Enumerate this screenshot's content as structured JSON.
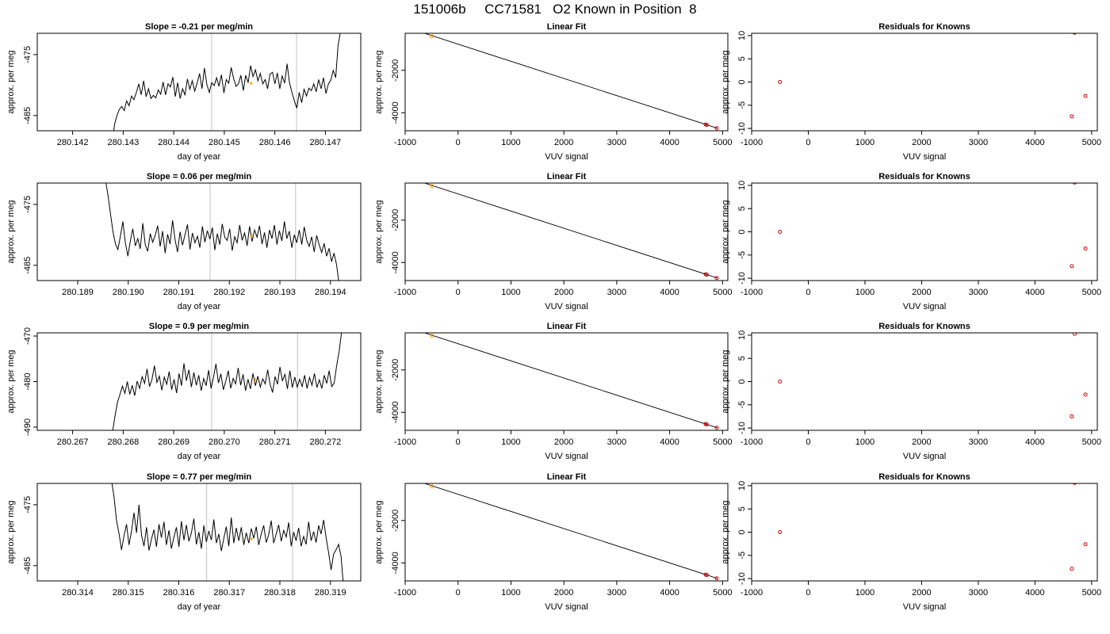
{
  "page_title": "151006b     CC71581   O2 Known in Position  8",
  "chart_data": [
    {
      "type": "line",
      "title": "Slope =  -0.21  per meg/min",
      "xlabel": "day of year",
      "ylabel": "approx. per meg",
      "xlim": [
        280.1413,
        280.1477
      ],
      "ylim": [
        -487.5,
        -471.5
      ],
      "xticks": [
        "280.142",
        "280.143",
        "280.144",
        "280.145",
        "280.146",
        "280.147"
      ],
      "yticks": [
        "-475",
        "-485"
      ],
      "ytick_values": [
        -475,
        -485
      ],
      "vlines": [
        280.14475,
        280.14643
      ],
      "vline_color": "#cccccc",
      "x_start": 280.14278,
      "x_end": 280.1473,
      "y": [
        -490,
        -486.5,
        -485,
        -484,
        -483.5,
        -484.2,
        -482.6,
        -483.4,
        -481.8,
        -482.4,
        -481.2,
        -479.8,
        -481.6,
        -479.3,
        -481.9,
        -480.6,
        -482.2,
        -481.7,
        -482.1,
        -480.8,
        -481.5,
        -479.5,
        -481.6,
        -479.8,
        -480.3,
        -478.7,
        -481.9,
        -479.6,
        -482.2,
        -480.6,
        -481.6,
        -479.0,
        -480.7,
        -479.3,
        -481.0,
        -479.7,
        -478.1,
        -480.6,
        -477.2,
        -479.9,
        -481.2,
        -479.6,
        -480.1,
        -478.8,
        -480.2,
        -478.3,
        -481.3,
        -479.1,
        -479.7,
        -477.1,
        -478.9,
        -480.2,
        -479.8,
        -478.4,
        -480.9,
        -478.4,
        -479.6,
        -476.8,
        -478.6,
        -477.5,
        -479.3,
        -478.1,
        -479.8,
        -479.1,
        -480.6,
        -478.2,
        -477.9,
        -479.8,
        -478.0,
        -480.6,
        -478.5,
        -479.7,
        -476.5,
        -479.6,
        -481.2,
        -482.6,
        -483.8,
        -481.2,
        -482.9,
        -480.7,
        -481.8,
        -480.5,
        -480.9,
        -479.8,
        -481.1,
        -479.1,
        -480.6,
        -478.8,
        -481.4,
        -479.8,
        -479.2,
        -477.6,
        -478.8,
        -473.5,
        -471.2
      ],
      "marker": {
        "x": 280.14553,
        "y": -479.7,
        "color": "#ff9900"
      }
    },
    {
      "type": "scatter",
      "title": "Linear Fit",
      "xlabel": "VUV signal",
      "ylabel": "approx. per meg",
      "xlim": [
        -1000,
        5100
      ],
      "ylim": [
        -4850,
        -250
      ],
      "xticks": [
        "-1000",
        "0",
        "1000",
        "2000",
        "3000",
        "4000",
        "5000"
      ],
      "xtick_values": [
        -1000,
        0,
        1000,
        2000,
        3000,
        4000,
        5000
      ],
      "yticks": [
        "-2000",
        "-4000"
      ],
      "ytick_values": [
        -2000,
        -4000
      ],
      "fit_line": {
        "x": [
          -780,
          4900
        ],
        "y": [
          -130,
          -4730
        ]
      },
      "points": [
        {
          "x": -495,
          "y": -393,
          "color": "#ff9900"
        },
        {
          "x": 4680,
          "y": -4555,
          "color": "#cc0000"
        },
        {
          "x": 4700,
          "y": -4575,
          "color": "#cc0000"
        },
        {
          "x": 4890,
          "y": -4730,
          "color": "#cc0000"
        }
      ]
    },
    {
      "type": "scatter",
      "title": "Residuals for Knowns",
      "xlabel": "VUV signal",
      "ylabel": "approx. per meg",
      "xlim": [
        -1000,
        5100
      ],
      "ylim": [
        -10.5,
        10.5
      ],
      "xticks": [
        "-1000",
        "0",
        "1000",
        "2000",
        "3000",
        "4000",
        "5000"
      ],
      "xtick_values": [
        -1000,
        0,
        1000,
        2000,
        3000,
        4000,
        5000
      ],
      "yticks": [
        "10",
        "5",
        "0",
        "-5",
        "-10"
      ],
      "ytick_values": [
        10,
        5,
        0,
        -5,
        -10
      ],
      "points": [
        {
          "x": -500,
          "y": 0.0,
          "color": "#cc0000"
        },
        {
          "x": 4700,
          "y": 10.6,
          "color": "#cc0000"
        },
        {
          "x": 4650,
          "y": -7.4,
          "color": "#cc0000"
        },
        {
          "x": 4890,
          "y": -3.0,
          "color": "#cc0000"
        }
      ]
    },
    {
      "type": "line",
      "title": "Slope =  0.06  per meg/min",
      "xlabel": "day of year",
      "ylabel": "approx. per meg",
      "xlim": [
        280.1882,
        280.1946
      ],
      "ylim": [
        -487.5,
        -471.5
      ],
      "xticks": [
        "280.189",
        "280.190",
        "280.191",
        "280.192",
        "280.193",
        "280.194"
      ],
      "yticks": [
        "-475",
        "-485"
      ],
      "ytick_values": [
        -475,
        -485
      ],
      "vlines": [
        280.19162,
        280.19331
      ],
      "vline_color": "#cccccc",
      "x_start": 280.18955,
      "x_end": 280.19417,
      "y": [
        -471.0,
        -473.5,
        -476.5,
        -479.5,
        -481.5,
        -482.4,
        -480.2,
        -477.8,
        -481.3,
        -483.5,
        -481.0,
        -479.0,
        -481.8,
        -480.6,
        -482.3,
        -478.1,
        -481.6,
        -482.7,
        -479.8,
        -481.2,
        -480.1,
        -478.5,
        -481.9,
        -479.4,
        -483.0,
        -479.9,
        -481.5,
        -477.6,
        -480.8,
        -482.8,
        -479.5,
        -481.7,
        -480.0,
        -478.3,
        -482.4,
        -479.7,
        -481.3,
        -480.2,
        -482.1,
        -478.6,
        -481.2,
        -479.3,
        -480.7,
        -478.8,
        -482.5,
        -479.8,
        -481.6,
        -478.2,
        -480.4,
        -480.9,
        -479.0,
        -482.6,
        -480.3,
        -481.3,
        -478.4,
        -480.9,
        -479.7,
        -481.8,
        -478.6,
        -481.1,
        -479.2,
        -480.4,
        -478.5,
        -481.5,
        -479.6,
        -482.1,
        -479.2,
        -480.6,
        -478.4,
        -481.6,
        -479.3,
        -481.0,
        -477.8,
        -480.6,
        -479.4,
        -482.1,
        -480.0,
        -481.3,
        -479.2,
        -481.6,
        -478.7,
        -480.9,
        -481.9,
        -480.3,
        -482.8,
        -480.1,
        -481.6,
        -482.9,
        -481.4,
        -483.5,
        -482.2,
        -484.4,
        -483.0,
        -484.9,
        -488.0
      ],
      "marker": {
        "x": 280.19244,
        "y": -480.2,
        "color": "#ff9900"
      }
    },
    {
      "type": "scatter",
      "title": "Linear Fit",
      "xlabel": "VUV signal",
      "ylabel": "approx. per meg",
      "xlim": [
        -1000,
        5100
      ],
      "ylim": [
        -4850,
        -250
      ],
      "xticks": [
        "-1000",
        "0",
        "1000",
        "2000",
        "3000",
        "4000",
        "5000"
      ],
      "xtick_values": [
        -1000,
        0,
        1000,
        2000,
        3000,
        4000,
        5000
      ],
      "yticks": [
        "-2000",
        "-4000"
      ],
      "ytick_values": [
        -2000,
        -4000
      ],
      "fit_line": {
        "x": [
          -780,
          4900
        ],
        "y": [
          -130,
          -4730
        ]
      },
      "points": [
        {
          "x": -495,
          "y": -393,
          "color": "#ff9900"
        },
        {
          "x": 4680,
          "y": -4555,
          "color": "#cc0000"
        },
        {
          "x": 4700,
          "y": -4575,
          "color": "#cc0000"
        },
        {
          "x": 4890,
          "y": -4730,
          "color": "#cc0000"
        }
      ]
    },
    {
      "type": "scatter",
      "title": "Residuals for Knowns",
      "xlabel": "VUV signal",
      "ylabel": "approx. per meg",
      "xlim": [
        -1000,
        5100
      ],
      "ylim": [
        -10.5,
        10.5
      ],
      "xticks": [
        "-1000",
        "0",
        "1000",
        "2000",
        "3000",
        "4000",
        "5000"
      ],
      "xtick_values": [
        -1000,
        0,
        1000,
        2000,
        3000,
        4000,
        5000
      ],
      "yticks": [
        "10",
        "5",
        "0",
        "-5",
        "-10"
      ],
      "ytick_values": [
        10,
        5,
        0,
        -5,
        -10
      ],
      "points": [
        {
          "x": -500,
          "y": 0.0,
          "color": "#cc0000"
        },
        {
          "x": 4700,
          "y": 10.6,
          "color": "#cc0000"
        },
        {
          "x": 4650,
          "y": -7.4,
          "color": "#cc0000"
        },
        {
          "x": 4890,
          "y": -3.6,
          "color": "#cc0000"
        }
      ]
    },
    {
      "type": "line",
      "title": "Slope =  0.9  per meg/min",
      "xlabel": "day of year",
      "ylabel": "approx. per meg",
      "xlim": [
        280.2663,
        280.2727
      ],
      "ylim": [
        -490.7,
        -469.3
      ],
      "xticks": [
        "280.267",
        "280.268",
        "280.269",
        "280.270",
        "280.271",
        "280.272"
      ],
      "yticks": [
        "-470",
        "-480",
        "-490"
      ],
      "ytick_values": [
        -470,
        -480,
        -490
      ],
      "vlines": [
        280.26975,
        280.27145
      ],
      "vline_color": "#cccccc",
      "x_start": 280.26779,
      "x_end": 280.27232,
      "y": [
        -491,
        -487.5,
        -484.5,
        -482.8,
        -481.0,
        -482.6,
        -480.0,
        -482.8,
        -480.8,
        -483.1,
        -479.9,
        -481.5,
        -478.9,
        -480.4,
        -477.2,
        -481.1,
        -479.5,
        -476.5,
        -480.2,
        -478.8,
        -481.9,
        -479.0,
        -480.6,
        -477.8,
        -481.8,
        -479.5,
        -482.5,
        -478.2,
        -480.9,
        -476.0,
        -479.8,
        -477.4,
        -481.2,
        -478.0,
        -480.8,
        -478.6,
        -482.0,
        -479.3,
        -480.9,
        -477.5,
        -481.5,
        -479.0,
        -476.1,
        -480.3,
        -478.3,
        -481.8,
        -479.9,
        -477.6,
        -481.5,
        -479.3,
        -480.5,
        -477.0,
        -480.8,
        -478.4,
        -482.0,
        -479.5,
        -481.6,
        -478.2,
        -480.9,
        -478.8,
        -481.2,
        -479.4,
        -480.5,
        -477.4,
        -480.6,
        -482.4,
        -478.9,
        -480.6,
        -476.8,
        -479.8,
        -478.4,
        -481.6,
        -477.6,
        -481.3,
        -479.0,
        -481.2,
        -479.5,
        -481.1,
        -478.6,
        -481.5,
        -479.1,
        -480.8,
        -478.2,
        -481.3,
        -479.6,
        -481.5,
        -478.6,
        -480.4,
        -477.6,
        -481.1,
        -480.3,
        -476.5,
        -473.4,
        -469.2
      ],
      "marker": {
        "x": 280.27061,
        "y": -479.6,
        "color": "#ff9900"
      }
    },
    {
      "type": "scatter",
      "title": "Linear Fit",
      "xlabel": "VUV signal",
      "ylabel": "approx. per meg",
      "xlim": [
        -1000,
        5100
      ],
      "ylim": [
        -4850,
        -250
      ],
      "xticks": [
        "-1000",
        "0",
        "1000",
        "2000",
        "3000",
        "4000",
        "5000"
      ],
      "xtick_values": [
        -1000,
        0,
        1000,
        2000,
        3000,
        4000,
        5000
      ],
      "yticks": [
        "-2000",
        "-4000"
      ],
      "ytick_values": [
        -2000,
        -4000
      ],
      "fit_line": {
        "x": [
          -780,
          4900
        ],
        "y": [
          -130,
          -4730
        ]
      },
      "points": [
        {
          "x": -495,
          "y": -393,
          "color": "#ff9900"
        },
        {
          "x": 4680,
          "y": -4555,
          "color": "#cc0000"
        },
        {
          "x": 4700,
          "y": -4575,
          "color": "#cc0000"
        },
        {
          "x": 4890,
          "y": -4730,
          "color": "#cc0000"
        }
      ]
    },
    {
      "type": "scatter",
      "title": "Residuals for Knowns",
      "xlabel": "VUV signal",
      "ylabel": "approx. per meg",
      "xlim": [
        -1000,
        5100
      ],
      "ylim": [
        -10.5,
        10.5
      ],
      "xticks": [
        "-1000",
        "0",
        "1000",
        "2000",
        "3000",
        "4000",
        "5000"
      ],
      "xtick_values": [
        -1000,
        0,
        1000,
        2000,
        3000,
        4000,
        5000
      ],
      "yticks": [
        "10",
        "5",
        "0",
        "-5",
        "-10"
      ],
      "ytick_values": [
        10,
        5,
        0,
        -5,
        -10
      ],
      "points": [
        {
          "x": -500,
          "y": 0.0,
          "color": "#cc0000"
        },
        {
          "x": 4700,
          "y": 10.3,
          "color": "#cc0000"
        },
        {
          "x": 4650,
          "y": -7.5,
          "color": "#cc0000"
        },
        {
          "x": 4890,
          "y": -2.8,
          "color": "#cc0000"
        }
      ]
    },
    {
      "type": "line",
      "title": "Slope =  0.77  per meg/min",
      "xlabel": "day of year",
      "ylabel": "approx. per meg",
      "xlim": [
        280.3132,
        280.3196
      ],
      "ylim": [
        -487.5,
        -471.5
      ],
      "xticks": [
        "280.314",
        "280.315",
        "280.316",
        "280.317",
        "280.318",
        "280.319"
      ],
      "yticks": [
        "-475",
        "-485"
      ],
      "ytick_values": [
        -475,
        -485
      ],
      "vlines": [
        280.31655,
        280.31825
      ],
      "vline_color": "#cccccc",
      "x_start": 280.31467,
      "x_end": 280.31926,
      "y": [
        -471.0,
        -473.8,
        -477.6,
        -479.8,
        -482.4,
        -480.1,
        -478.2,
        -481.6,
        -479.3,
        -476.3,
        -479.6,
        -475.0,
        -480.0,
        -481.8,
        -478.7,
        -482.5,
        -480.6,
        -479.1,
        -481.9,
        -478.2,
        -480.4,
        -477.8,
        -481.6,
        -479.2,
        -482.2,
        -480.3,
        -478.7,
        -481.9,
        -477.7,
        -480.8,
        -478.3,
        -481.0,
        -479.6,
        -477.3,
        -481.5,
        -479.5,
        -482.2,
        -478.4,
        -481.1,
        -479.3,
        -480.8,
        -477.4,
        -481.3,
        -479.8,
        -482.6,
        -480.5,
        -478.6,
        -481.8,
        -477.1,
        -481.3,
        -478.8,
        -480.9,
        -478.7,
        -481.6,
        -479.6,
        -481.3,
        -478.9,
        -480.5,
        -478.6,
        -481.6,
        -479.8,
        -478.4,
        -481.2,
        -479.9,
        -477.6,
        -481.3,
        -479.8,
        -478.3,
        -481.0,
        -479.2,
        -480.3,
        -477.9,
        -481.8,
        -479.5,
        -480.9,
        -478.8,
        -481.8,
        -480.2,
        -481.5,
        -477.8,
        -480.9,
        -479.4,
        -481.2,
        -478.4,
        -479.8,
        -477.5,
        -480.4,
        -482.8,
        -485.7,
        -483.1,
        -482.4,
        -481.5,
        -483.5,
        -488.5
      ],
      "marker": {
        "x": 280.31744,
        "y": -480.6,
        "color": "#ff9900"
      }
    },
    {
      "type": "scatter",
      "title": "Linear Fit",
      "xlabel": "VUV signal",
      "ylabel": "approx. per meg",
      "xlim": [
        -1000,
        5100
      ],
      "ylim": [
        -4850,
        -250
      ],
      "xticks": [
        "-1000",
        "0",
        "1000",
        "2000",
        "3000",
        "4000",
        "5000"
      ],
      "xtick_values": [
        -1000,
        0,
        1000,
        2000,
        3000,
        4000,
        5000
      ],
      "yticks": [
        "-2000",
        "-4000"
      ],
      "ytick_values": [
        -2000,
        -4000
      ],
      "fit_line": {
        "x": [
          -780,
          4900
        ],
        "y": [
          -130,
          -4730
        ]
      },
      "points": [
        {
          "x": -495,
          "y": -393,
          "color": "#ff9900"
        },
        {
          "x": 4680,
          "y": -4555,
          "color": "#cc0000"
        },
        {
          "x": 4700,
          "y": -4575,
          "color": "#cc0000"
        },
        {
          "x": 4890,
          "y": -4730,
          "color": "#cc0000"
        }
      ]
    },
    {
      "type": "scatter",
      "title": "Residuals for Knowns",
      "xlabel": "VUV signal",
      "ylabel": "approx. per meg",
      "xlim": [
        -1000,
        5100
      ],
      "ylim": [
        -10.5,
        10.5
      ],
      "xticks": [
        "-1000",
        "0",
        "1000",
        "2000",
        "3000",
        "4000",
        "5000"
      ],
      "xtick_values": [
        -1000,
        0,
        1000,
        2000,
        3000,
        4000,
        5000
      ],
      "yticks": [
        "10",
        "5",
        "0",
        "-5",
        "-10"
      ],
      "ytick_values": [
        10,
        5,
        0,
        -5,
        -10
      ],
      "points": [
        {
          "x": -500,
          "y": 0.0,
          "color": "#cc0000"
        },
        {
          "x": 4700,
          "y": 10.6,
          "color": "#cc0000"
        },
        {
          "x": 4650,
          "y": -7.9,
          "color": "#cc0000"
        },
        {
          "x": 4890,
          "y": -2.6,
          "color": "#cc0000"
        }
      ]
    }
  ]
}
